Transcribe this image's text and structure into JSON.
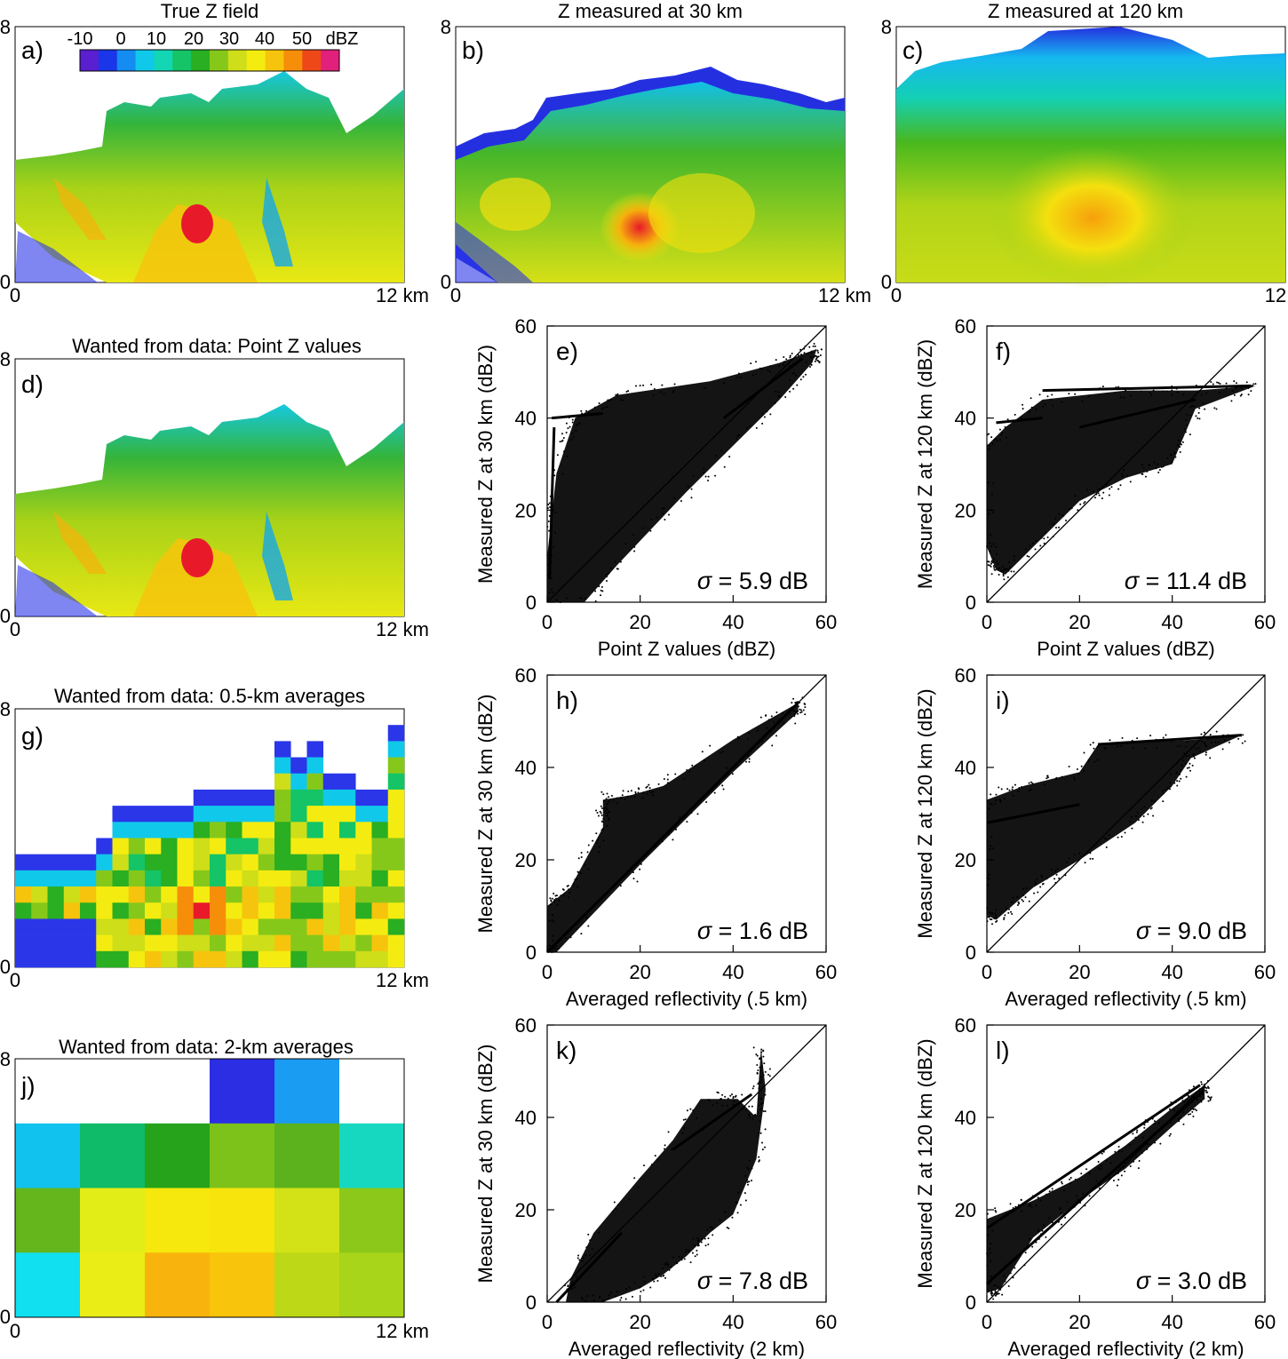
{
  "figure": {
    "colorbar": {
      "ticks": [
        "-10",
        "0",
        "10",
        "20",
        "30",
        "40",
        "50"
      ],
      "unit": "dBZ",
      "colors": [
        "#5a1fd0",
        "#1a36e8",
        "#148cf2",
        "#10c8ea",
        "#12d6b4",
        "#14c466",
        "#2aae22",
        "#86c81a",
        "#cede18",
        "#f4ec10",
        "#f6c40c",
        "#f68e0a",
        "#ef4818",
        "#e0207a"
      ]
    },
    "maps": [
      {
        "id": "a",
        "panel": "a)",
        "title": "True Z field",
        "y_top": "8",
        "y_bottom": "0",
        "x_left": "0",
        "x_right": "12 km"
      },
      {
        "id": "b",
        "panel": "b)",
        "title": "Z measured at 30 km",
        "y_top": "8",
        "y_bottom": "0",
        "x_left": "0",
        "x_right": "12 km"
      },
      {
        "id": "c",
        "panel": "c)",
        "title": "Z measured at 120 km",
        "y_top": "8",
        "y_bottom": "0",
        "x_left": "0",
        "x_right": "12"
      },
      {
        "id": "d",
        "panel": "d)",
        "title": "Wanted from data: Point Z values",
        "y_top": "8",
        "y_bottom": "0",
        "x_left": "0",
        "x_right": "12 km"
      },
      {
        "id": "g",
        "panel": "g)",
        "title": "Wanted from data: 0.5-km averages",
        "y_top": "8",
        "y_bottom": "0",
        "x_left": "0",
        "x_right": "12 km"
      },
      {
        "id": "j",
        "panel": "j)",
        "title": "Wanted from data: 2-km averages",
        "y_top": "8",
        "y_bottom": "0",
        "x_left": "0",
        "x_right": "12 km"
      }
    ],
    "grid_2km": {
      "rows_top_to_bottom": [
        [
          "#ffffff",
          "#ffffff",
          "#ffffff",
          "#2b2ee2",
          "#1a9cf2",
          "#ffffff"
        ],
        [
          "#12c2ee",
          "#0fba68",
          "#26a31a",
          "#7cc21a",
          "#5cb21c",
          "#16d8c0"
        ],
        [
          "#64b61c",
          "#e2ec16",
          "#f6e80c",
          "#f6e40c",
          "#d2e216",
          "#8cc81a"
        ],
        [
          "#10e0f0",
          "#eaee16",
          "#f8b40c",
          "#f8c40c",
          "#bcd816",
          "#a8d41a"
        ]
      ]
    }
  },
  "chart_data": [
    {
      "id": "e",
      "type": "scatter",
      "panel": "e)",
      "xlabel": "Point Z values (dBZ)",
      "ylabel": "Measured Z at 30 km (dBZ)",
      "xlim": [
        0,
        60
      ],
      "ylim": [
        0,
        60
      ],
      "xticks": [
        "0",
        "20",
        "40",
        "60"
      ],
      "yticks": [
        "0",
        "20",
        "40",
        "60"
      ],
      "sigma_symbol": "σ",
      "sigma_text": " = 5.9 dB",
      "one_to_one_line": true,
      "cloud": [
        [
          0,
          0
        ],
        [
          0,
          10
        ],
        [
          2,
          28
        ],
        [
          6,
          40
        ],
        [
          15,
          45
        ],
        [
          35,
          48
        ],
        [
          50,
          52
        ],
        [
          58,
          55
        ],
        [
          57,
          52
        ],
        [
          50,
          44
        ],
        [
          30,
          24
        ],
        [
          15,
          8
        ],
        [
          8,
          0
        ]
      ],
      "streaks": [
        [
          [
            1,
            40
          ],
          [
            12,
            41
          ]
        ],
        [
          [
            0.5,
            5
          ],
          [
            1.5,
            38
          ]
        ],
        [
          [
            38,
            40
          ],
          [
            55,
            53
          ]
        ]
      ]
    },
    {
      "id": "f",
      "type": "scatter",
      "panel": "f)",
      "xlabel": "Point Z values (dBZ)",
      "ylabel": "Measured Z at 120 km (dBZ)",
      "xlim": [
        0,
        60
      ],
      "ylim": [
        0,
        60
      ],
      "xticks": [
        "0",
        "20",
        "40",
        "60"
      ],
      "yticks": [
        "0",
        "20",
        "40",
        "60"
      ],
      "sigma_symbol": "σ",
      "sigma_text": " = 11.4 dB",
      "one_to_one_line": true,
      "cloud": [
        [
          0,
          12
        ],
        [
          0,
          34
        ],
        [
          4,
          38
        ],
        [
          12,
          44
        ],
        [
          30,
          46
        ],
        [
          45,
          46
        ],
        [
          58,
          47
        ],
        [
          45,
          42
        ],
        [
          40,
          30
        ],
        [
          30,
          27
        ],
        [
          20,
          22
        ],
        [
          10,
          12
        ],
        [
          4,
          6
        ],
        [
          2,
          7
        ]
      ],
      "streaks": [
        [
          [
            12,
            46
          ],
          [
            57,
            47
          ]
        ],
        [
          [
            2,
            39
          ],
          [
            12,
            40
          ]
        ],
        [
          [
            20,
            38
          ],
          [
            45,
            44
          ]
        ]
      ]
    },
    {
      "id": "h",
      "type": "scatter",
      "panel": "h)",
      "xlabel": "Averaged reflectivity (.5 km)",
      "ylabel": "Measured Z at 30 km (dBZ)",
      "xlim": [
        0,
        60
      ],
      "ylim": [
        0,
        60
      ],
      "xticks": [
        "0",
        "20",
        "40",
        "60"
      ],
      "yticks": [
        "0",
        "20",
        "40",
        "60"
      ],
      "sigma_symbol": "σ",
      "sigma_text": " = 1.6 dB",
      "one_to_one_line": true,
      "cloud": [
        [
          0,
          0
        ],
        [
          0,
          10
        ],
        [
          5,
          14
        ],
        [
          12,
          27
        ],
        [
          12,
          33
        ],
        [
          18,
          34
        ],
        [
          25,
          36
        ],
        [
          40,
          46
        ],
        [
          54,
          54
        ],
        [
          54,
          52
        ],
        [
          40,
          39
        ],
        [
          20,
          19
        ],
        [
          2,
          0
        ]
      ],
      "streaks": [
        [
          [
            0,
            0
          ],
          [
            54,
            54
          ]
        ]
      ]
    },
    {
      "id": "i",
      "type": "scatter",
      "panel": "i)",
      "xlabel": "Averaged reflectivity (.5 km)",
      "ylabel": "Measured Z at 120 km (dBZ)",
      "xlim": [
        0,
        60
      ],
      "ylim": [
        0,
        60
      ],
      "xticks": [
        "0",
        "20",
        "40",
        "60"
      ],
      "yticks": [
        "0",
        "20",
        "40",
        "60"
      ],
      "sigma_symbol": "σ",
      "sigma_text": " = 9.0 dB",
      "one_to_one_line": true,
      "cloud": [
        [
          0,
          8
        ],
        [
          0,
          33
        ],
        [
          8,
          36
        ],
        [
          20,
          39
        ],
        [
          24,
          45
        ],
        [
          45,
          46
        ],
        [
          55,
          47
        ],
        [
          44,
          42
        ],
        [
          40,
          36
        ],
        [
          32,
          28
        ],
        [
          20,
          20
        ],
        [
          10,
          14
        ],
        [
          2,
          7
        ]
      ],
      "streaks": [
        [
          [
            24,
            45
          ],
          [
            55,
            47
          ]
        ],
        [
          [
            0,
            28
          ],
          [
            20,
            32
          ]
        ]
      ]
    },
    {
      "id": "k",
      "type": "scatter",
      "panel": "k)",
      "xlabel": "Averaged reflectivity (2 km)",
      "ylabel": "Measured Z at 30 km (dBZ)",
      "xlim": [
        0,
        60
      ],
      "ylim": [
        0,
        60
      ],
      "xticks": [
        "0",
        "20",
        "40",
        "60"
      ],
      "yticks": [
        "0",
        "20",
        "40",
        "60"
      ],
      "sigma_symbol": "σ",
      "sigma_text": " = 7.8 dB",
      "one_to_one_line": true,
      "cloud": [
        [
          4,
          0
        ],
        [
          5,
          5
        ],
        [
          10,
          15
        ],
        [
          20,
          27
        ],
        [
          27,
          35
        ],
        [
          33,
          44
        ],
        [
          41,
          44
        ],
        [
          45,
          40
        ],
        [
          46,
          55
        ],
        [
          47,
          46
        ],
        [
          45,
          31
        ],
        [
          40,
          19
        ],
        [
          35,
          15
        ],
        [
          30,
          10
        ],
        [
          25,
          6
        ],
        [
          20,
          3
        ],
        [
          12,
          0
        ]
      ],
      "streaks": [
        [
          [
            2,
            0
          ],
          [
            16,
            15
          ]
        ],
        [
          [
            27,
            33
          ],
          [
            44,
            45
          ]
        ]
      ]
    },
    {
      "id": "l",
      "type": "scatter",
      "panel": "l)",
      "xlabel": "Averaged reflectivity (2 km)",
      "ylabel": "Measured Z at 120 km (dBZ)",
      "xlim": [
        0,
        60
      ],
      "ylim": [
        0,
        60
      ],
      "xticks": [
        "0",
        "20",
        "40",
        "60"
      ],
      "yticks": [
        "0",
        "20",
        "40",
        "60"
      ],
      "sigma_symbol": "σ",
      "sigma_text": " = 3.0 dB",
      "one_to_one_line": true,
      "cloud": [
        [
          0,
          2
        ],
        [
          0,
          18
        ],
        [
          10,
          22
        ],
        [
          20,
          27
        ],
        [
          30,
          34
        ],
        [
          40,
          42
        ],
        [
          47,
          47
        ],
        [
          47,
          44
        ],
        [
          40,
          38
        ],
        [
          30,
          29
        ],
        [
          20,
          22
        ],
        [
          10,
          14
        ],
        [
          3,
          3
        ]
      ],
      "streaks": [
        [
          [
            0,
            4
          ],
          [
            47,
            46
          ]
        ],
        [
          [
            0,
            16
          ],
          [
            46,
            47
          ]
        ]
      ]
    }
  ]
}
